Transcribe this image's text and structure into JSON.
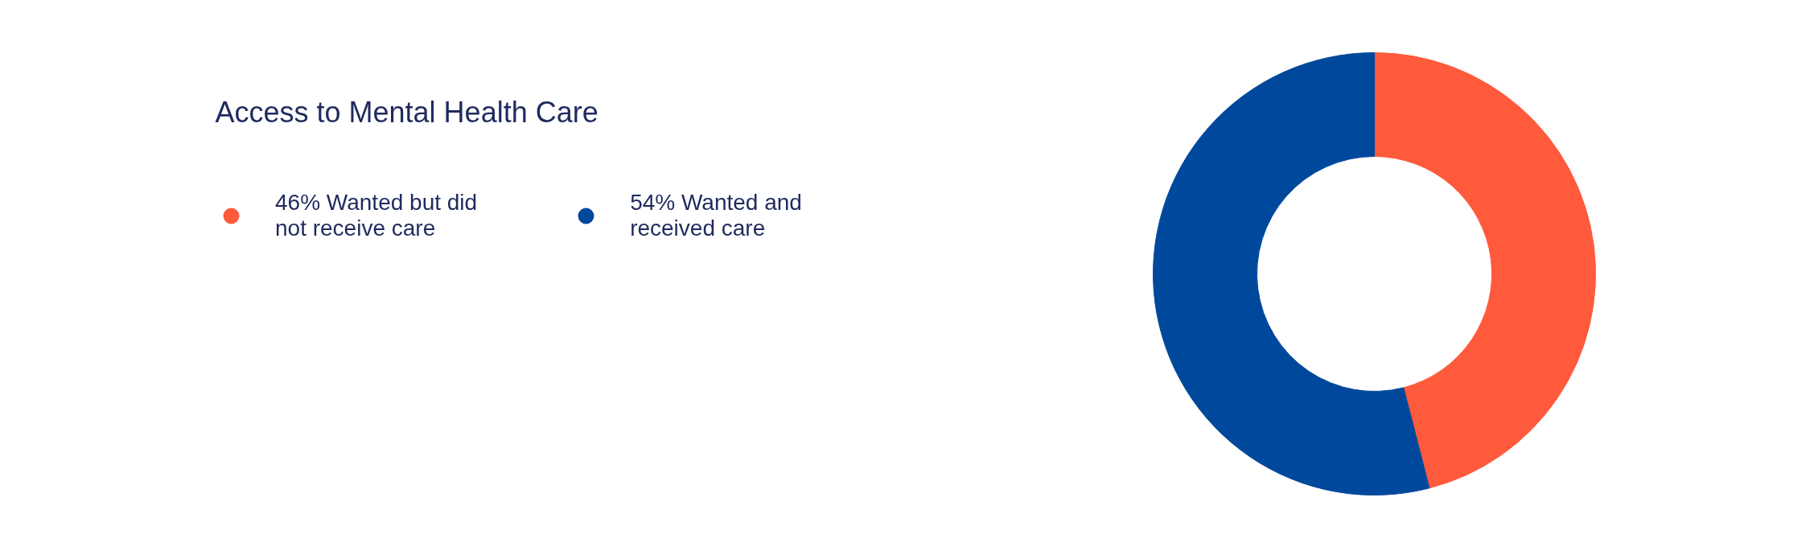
{
  "chart_data": {
    "type": "donut",
    "title": "Access to Mental Health Care",
    "categories": [
      "Wanted but did not receive care",
      "Wanted and received care"
    ],
    "values": [
      46,
      54
    ],
    "value_labels": [
      "46%",
      "54%"
    ],
    "colors": [
      "#ff5a3c",
      "#00489c"
    ],
    "legend": "left"
  }
}
